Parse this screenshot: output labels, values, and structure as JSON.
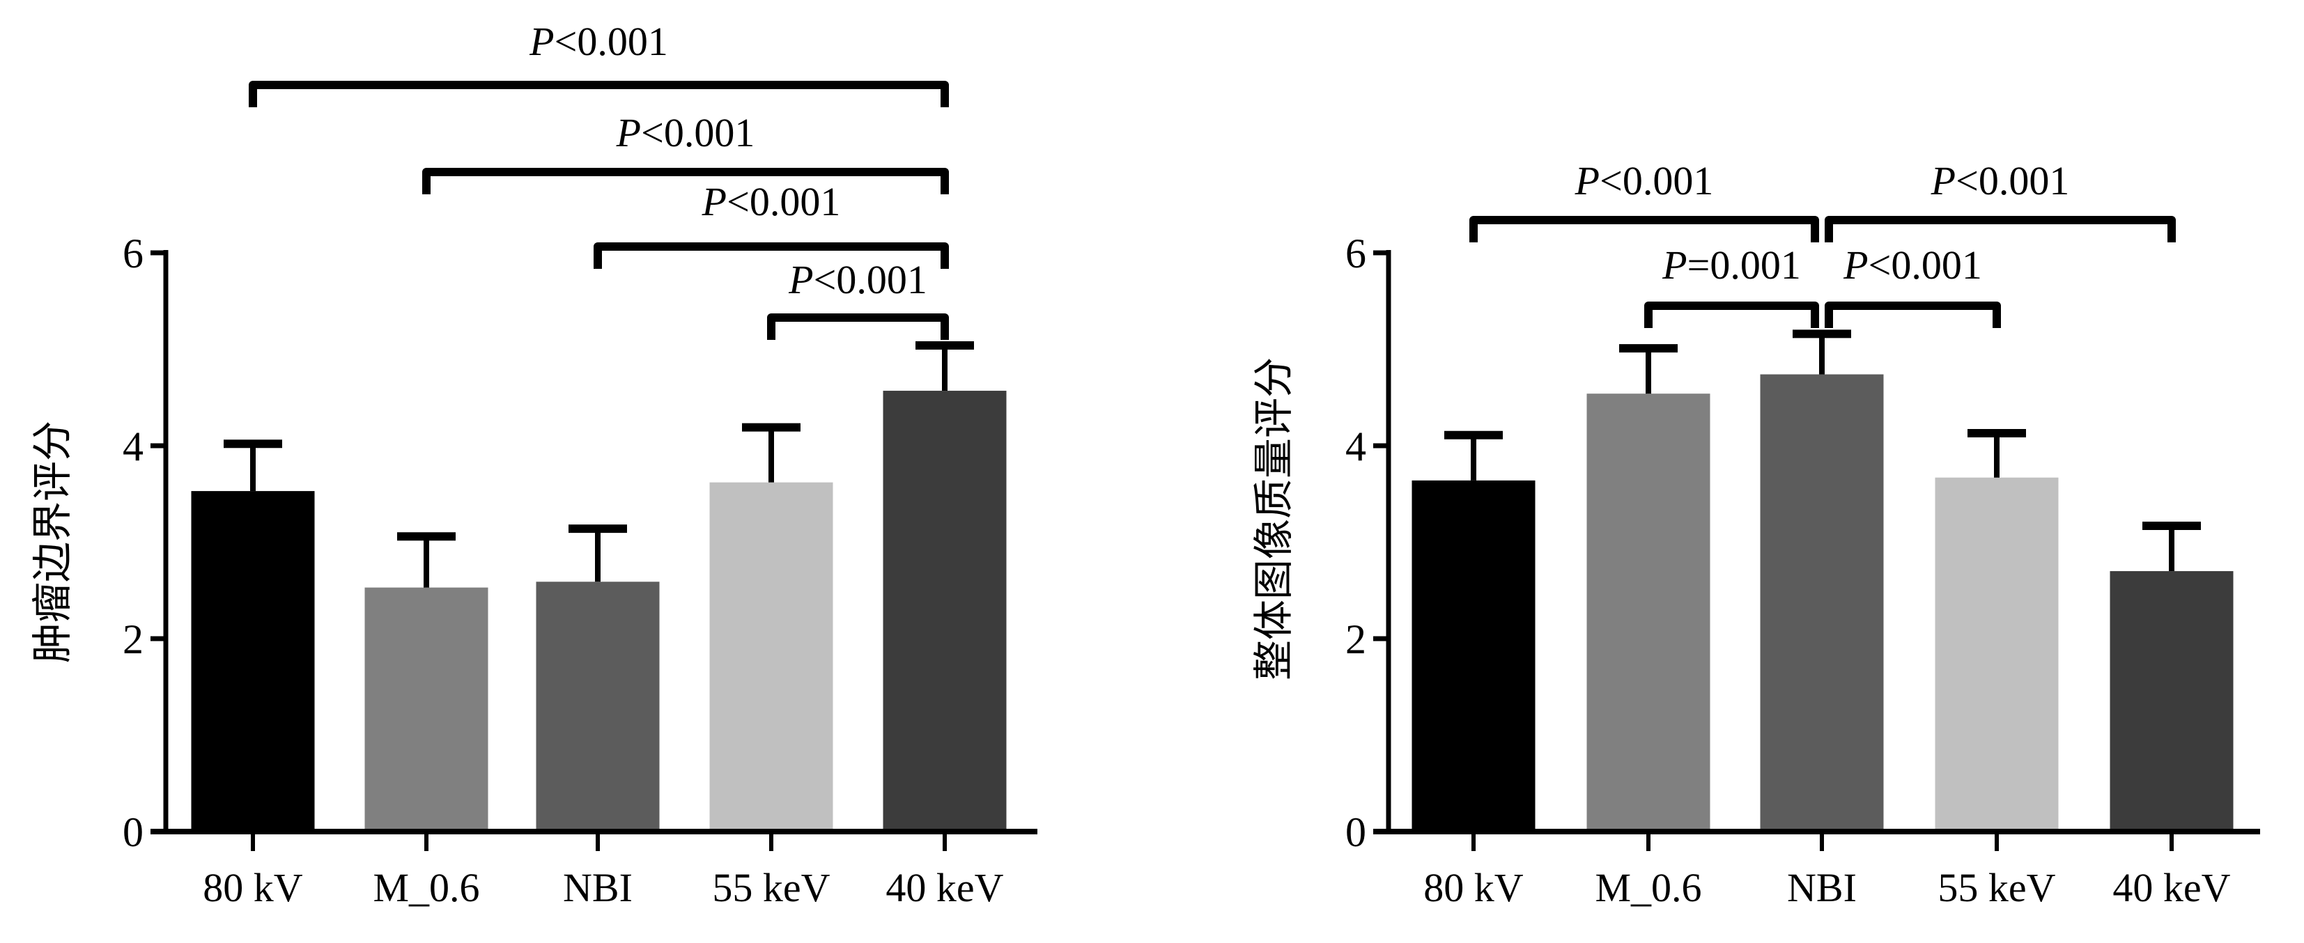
{
  "chart_data": [
    {
      "type": "bar",
      "title": "",
      "xlabel": "",
      "ylabel": "肿瘤边界评分",
      "ylim": [
        0,
        6
      ],
      "yticks": [
        0,
        2,
        4,
        6
      ],
      "categories": [
        "80 kV",
        "M_0.6",
        "NBI",
        "55 keV",
        "40 keV"
      ],
      "values": [
        3.53,
        2.53,
        2.59,
        3.62,
        4.57
      ],
      "error_upper": [
        4.02,
        3.06,
        3.14,
        4.19,
        5.04
      ],
      "colors": [
        "#000000",
        "#808080",
        "#5c5c5c",
        "#c0c0c0",
        "#3c3c3c"
      ],
      "grid": false,
      "comparisons": [
        {
          "from": "80 kV",
          "to": "40 keV",
          "label": "P<0.001"
        },
        {
          "from": "M_0.6",
          "to": "40 keV",
          "label": "P<0.001"
        },
        {
          "from": "NBI",
          "to": "40 keV",
          "label": "P<0.001"
        },
        {
          "from": "55 keV",
          "to": "40 keV",
          "label": "P<0.001"
        }
      ]
    },
    {
      "type": "bar",
      "title": "",
      "xlabel": "",
      "ylabel": "整体图像质量评分",
      "ylim": [
        0,
        6
      ],
      "yticks": [
        0,
        2,
        4,
        6
      ],
      "categories": [
        "80 kV",
        "M_0.6",
        "NBI",
        "55 keV",
        "40 keV"
      ],
      "values": [
        3.64,
        4.54,
        4.74,
        3.67,
        2.7
      ],
      "error_upper": [
        4.11,
        5.01,
        5.16,
        4.13,
        3.17
      ],
      "colors": [
        "#000000",
        "#808080",
        "#5c5c5c",
        "#c0c0c0",
        "#3c3c3c"
      ],
      "grid": false,
      "comparisons": [
        {
          "from": "80 kV",
          "to": "NBI",
          "label": "P<0.001"
        },
        {
          "from": "NBI",
          "to": "40 keV",
          "label": "P<0.001"
        },
        {
          "from": "M_0.6",
          "to": "NBI",
          "label": "P=0.001"
        },
        {
          "from": "NBI",
          "to": "55 keV",
          "label": "P<0.001"
        }
      ]
    }
  ]
}
